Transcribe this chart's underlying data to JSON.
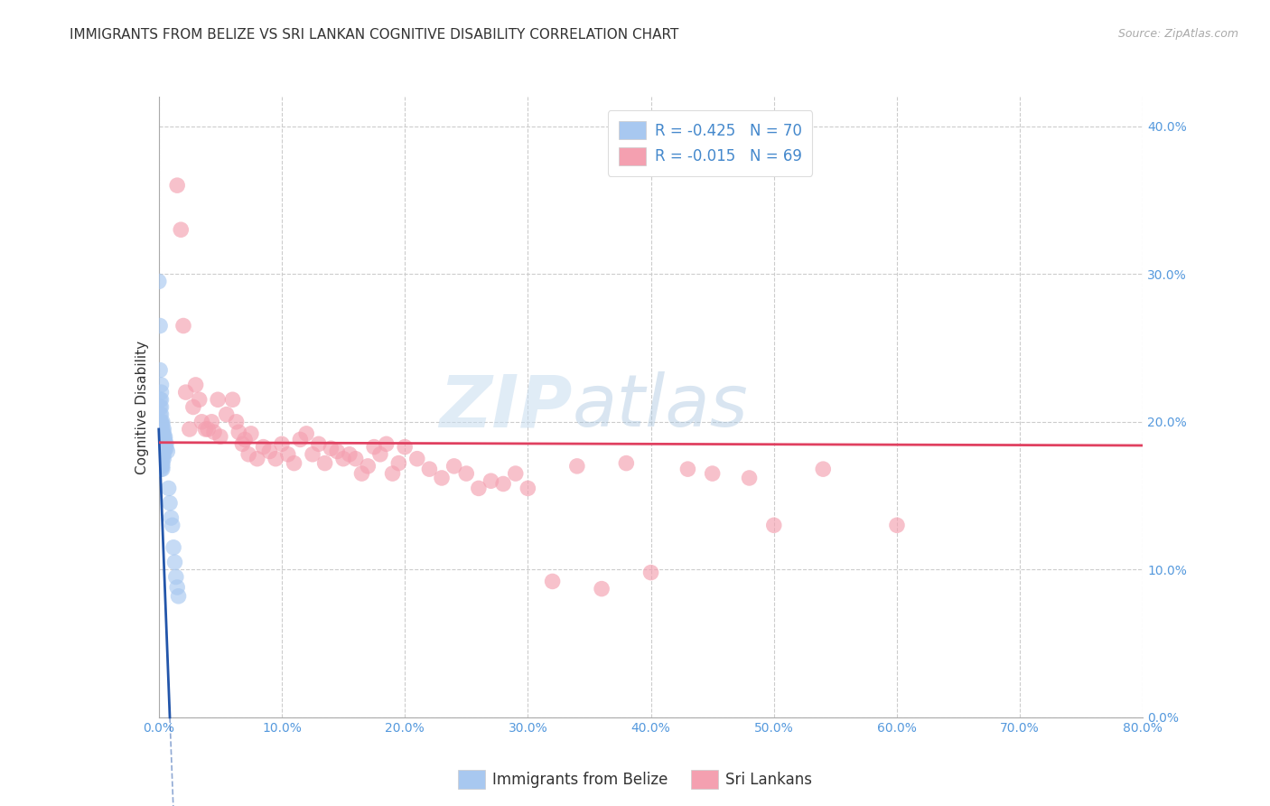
{
  "title": "IMMIGRANTS FROM BELIZE VS SRI LANKAN COGNITIVE DISABILITY CORRELATION CHART",
  "source": "Source: ZipAtlas.com",
  "ylabel": "Cognitive Disability",
  "legend_label1": "Immigrants from Belize",
  "legend_label2": "Sri Lankans",
  "R1": -0.425,
  "N1": 70,
  "R2": -0.015,
  "N2": 69,
  "color1": "#A8C8F0",
  "color2": "#F4A0B0",
  "line1_color": "#2255AA",
  "line2_color": "#E04060",
  "belize_x": [
    0.0,
    0.001,
    0.001,
    0.001,
    0.001,
    0.001,
    0.001,
    0.001,
    0.001,
    0.001,
    0.001,
    0.001,
    0.002,
    0.002,
    0.002,
    0.002,
    0.002,
    0.002,
    0.002,
    0.002,
    0.002,
    0.002,
    0.002,
    0.002,
    0.002,
    0.002,
    0.002,
    0.002,
    0.002,
    0.002,
    0.002,
    0.003,
    0.003,
    0.003,
    0.003,
    0.003,
    0.003,
    0.003,
    0.003,
    0.003,
    0.003,
    0.003,
    0.003,
    0.003,
    0.003,
    0.004,
    0.004,
    0.004,
    0.004,
    0.004,
    0.004,
    0.004,
    0.004,
    0.004,
    0.005,
    0.005,
    0.005,
    0.005,
    0.006,
    0.006,
    0.007,
    0.008,
    0.009,
    0.01,
    0.011,
    0.012,
    0.013,
    0.014,
    0.015,
    0.016
  ],
  "belize_y": [
    0.295,
    0.265,
    0.235,
    0.215,
    0.21,
    0.205,
    0.2,
    0.198,
    0.195,
    0.193,
    0.19,
    0.188,
    0.225,
    0.22,
    0.215,
    0.21,
    0.205,
    0.2,
    0.198,
    0.195,
    0.193,
    0.19,
    0.188,
    0.185,
    0.182,
    0.18,
    0.178,
    0.175,
    0.173,
    0.17,
    0.168,
    0.2,
    0.198,
    0.195,
    0.192,
    0.19,
    0.188,
    0.185,
    0.182,
    0.18,
    0.178,
    0.175,
    0.172,
    0.17,
    0.168,
    0.195,
    0.192,
    0.19,
    0.187,
    0.185,
    0.182,
    0.18,
    0.178,
    0.175,
    0.19,
    0.188,
    0.185,
    0.182,
    0.185,
    0.182,
    0.18,
    0.155,
    0.145,
    0.135,
    0.13,
    0.115,
    0.105,
    0.095,
    0.088,
    0.082
  ],
  "srilanka_x": [
    0.015,
    0.018,
    0.02,
    0.022,
    0.025,
    0.028,
    0.03,
    0.033,
    0.035,
    0.038,
    0.04,
    0.043,
    0.045,
    0.048,
    0.05,
    0.055,
    0.06,
    0.063,
    0.065,
    0.068,
    0.07,
    0.073,
    0.075,
    0.08,
    0.085,
    0.09,
    0.095,
    0.1,
    0.105,
    0.11,
    0.115,
    0.12,
    0.125,
    0.13,
    0.135,
    0.14,
    0.145,
    0.15,
    0.155,
    0.16,
    0.165,
    0.17,
    0.175,
    0.18,
    0.185,
    0.19,
    0.195,
    0.2,
    0.21,
    0.22,
    0.23,
    0.24,
    0.25,
    0.26,
    0.27,
    0.28,
    0.29,
    0.3,
    0.32,
    0.34,
    0.36,
    0.38,
    0.4,
    0.43,
    0.45,
    0.48,
    0.5,
    0.54,
    0.6
  ],
  "srilanka_y": [
    0.36,
    0.33,
    0.265,
    0.22,
    0.195,
    0.21,
    0.225,
    0.215,
    0.2,
    0.195,
    0.195,
    0.2,
    0.193,
    0.215,
    0.19,
    0.205,
    0.215,
    0.2,
    0.193,
    0.185,
    0.188,
    0.178,
    0.192,
    0.175,
    0.183,
    0.18,
    0.175,
    0.185,
    0.178,
    0.172,
    0.188,
    0.192,
    0.178,
    0.185,
    0.172,
    0.182,
    0.18,
    0.175,
    0.178,
    0.175,
    0.165,
    0.17,
    0.183,
    0.178,
    0.185,
    0.165,
    0.172,
    0.183,
    0.175,
    0.168,
    0.162,
    0.17,
    0.165,
    0.155,
    0.16,
    0.158,
    0.165,
    0.155,
    0.092,
    0.17,
    0.087,
    0.172,
    0.098,
    0.168,
    0.165,
    0.162,
    0.13,
    0.168,
    0.13
  ],
  "xlim": [
    0.0,
    0.8
  ],
  "ylim": [
    0.0,
    0.42
  ],
  "xticks": [
    0.0,
    0.1,
    0.2,
    0.3,
    0.4,
    0.5,
    0.6,
    0.7,
    0.8
  ],
  "yticks": [
    0.0,
    0.1,
    0.2,
    0.3,
    0.4
  ],
  "grid_color": "#CCCCCC",
  "background_color": "#FFFFFF",
  "title_fontsize": 11,
  "axis_label_fontsize": 11,
  "tick_fontsize": 10,
  "source_fontsize": 9,
  "watermark_zip": "ZIP",
  "watermark_atlas": "atlas"
}
